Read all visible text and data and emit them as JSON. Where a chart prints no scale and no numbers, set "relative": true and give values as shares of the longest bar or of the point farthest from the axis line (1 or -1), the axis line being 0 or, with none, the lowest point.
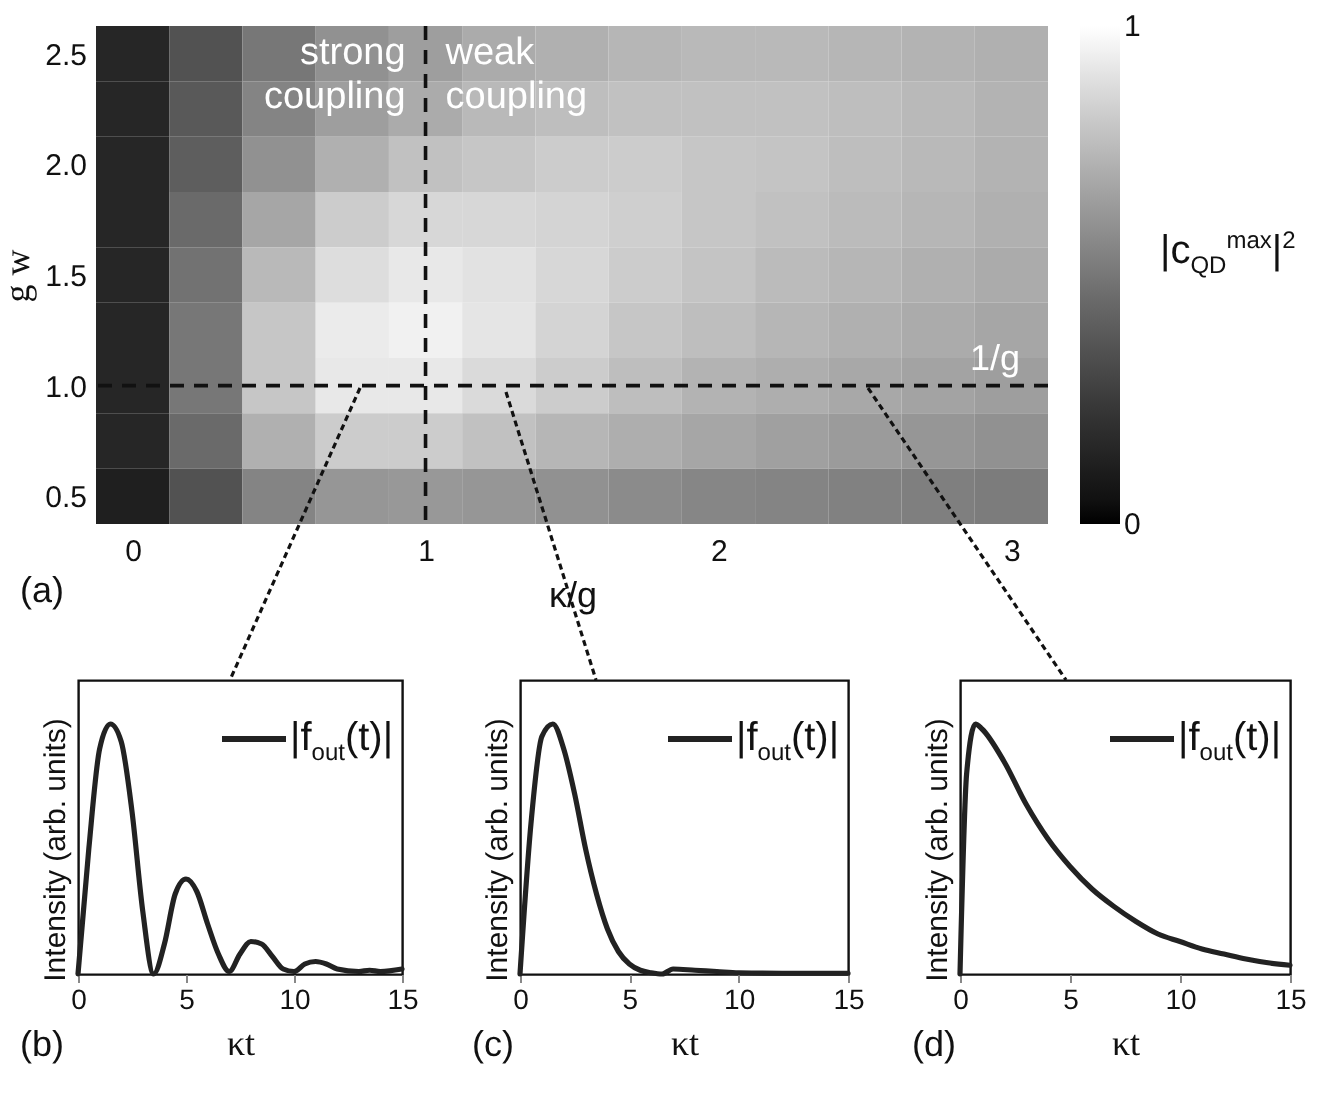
{
  "chart_data": [
    {
      "type": "heatmap",
      "xlabel": "κ/g",
      "ylabel": "g w",
      "clabel": "|c$_{QD}$$^{max}$|$^{2}$",
      "clim": [
        0,
        1
      ],
      "cticks": [
        0,
        1
      ],
      "annotations": [
        "(a)",
        "strong coupling",
        "weak coupling"
      ],
      "categories": [
        "0",
        null,
        null,
        null,
        "1",
        null,
        null,
        null,
        "2",
        null,
        null,
        null,
        "3"
      ],
      "y_categories": [
        "2.5",
        null,
        "2.0",
        null,
        "1.5",
        null,
        "1.0",
        null,
        "0.5"
      ],
      "cells": [
        [
          0.15,
          0.35,
          0.5,
          0.6,
          0.65,
          0.7,
          0.72,
          0.74,
          0.75,
          0.75,
          0.74,
          0.73,
          0.72
        ],
        [
          0.15,
          0.38,
          0.55,
          0.65,
          0.7,
          0.75,
          0.77,
          0.78,
          0.78,
          0.78,
          0.77,
          0.75,
          0.73
        ],
        [
          0.15,
          0.4,
          0.6,
          0.72,
          0.78,
          0.8,
          0.82,
          0.82,
          0.8,
          0.79,
          0.77,
          0.75,
          0.73
        ],
        [
          0.15,
          0.45,
          0.68,
          0.82,
          0.86,
          0.86,
          0.85,
          0.83,
          0.8,
          0.78,
          0.76,
          0.74,
          0.72
        ],
        [
          0.15,
          0.48,
          0.75,
          0.88,
          0.92,
          0.9,
          0.86,
          0.82,
          0.79,
          0.76,
          0.74,
          0.72,
          0.7
        ],
        [
          0.15,
          0.5,
          0.8,
          0.93,
          0.95,
          0.91,
          0.85,
          0.8,
          0.77,
          0.74,
          0.72,
          0.7,
          0.68
        ],
        [
          0.15,
          0.5,
          0.8,
          0.92,
          0.92,
          0.87,
          0.82,
          0.77,
          0.73,
          0.71,
          0.69,
          0.67,
          0.65
        ],
        [
          0.15,
          0.45,
          0.72,
          0.82,
          0.82,
          0.78,
          0.74,
          0.71,
          0.68,
          0.66,
          0.64,
          0.62,
          0.6
        ],
        [
          0.12,
          0.35,
          0.55,
          0.62,
          0.63,
          0.62,
          0.6,
          0.58,
          0.56,
          0.55,
          0.54,
          0.53,
          0.52
        ]
      ],
      "ref_lines": [
        {
          "axis": "x",
          "value": "1",
          "line_style": "dashed"
        },
        {
          "axis": "y",
          "value": "1.0",
          "label": "1/g",
          "line_style": "dashed"
        }
      ]
    },
    {
      "type": "line",
      "relative": true,
      "xlabel": "κt",
      "ylabel": "Intensity (arb. units)",
      "xlim": [
        0,
        15
      ],
      "xticks": [
        0,
        5,
        10,
        15
      ],
      "legend": "top right",
      "line_style": "solid",
      "annotations": [
        "(b)"
      ],
      "x": [
        0,
        0.5,
        1,
        1.5,
        2,
        2.5,
        3,
        3.5,
        4,
        4.5,
        5,
        5.5,
        6,
        6.5,
        7,
        7.5,
        8,
        8.5,
        9,
        9.5,
        10,
        10.5,
        11,
        11.5,
        12,
        13,
        13.5,
        14,
        15
      ],
      "series": [
        {
          "name": "|f$_{out}$(t)|",
          "color": "#222222",
          "values": [
            0,
            0.5,
            0.9,
            1.0,
            0.93,
            0.65,
            0.25,
            0,
            0.12,
            0.32,
            0.38,
            0.33,
            0.2,
            0.08,
            0.01,
            0.08,
            0.13,
            0.12,
            0.07,
            0.02,
            0.01,
            0.04,
            0.05,
            0.04,
            0.02,
            0.01,
            0.015,
            0.01,
            0.02
          ]
        }
      ]
    },
    {
      "type": "line",
      "relative": true,
      "xlabel": "κt",
      "ylabel": "Intensity (arb. units)",
      "xlim": [
        0,
        15
      ],
      "xticks": [
        0,
        5,
        10,
        15
      ],
      "legend": "top right",
      "line_style": "solid",
      "annotations": [
        "(c)"
      ],
      "x": [
        0,
        0.5,
        1,
        1.5,
        2,
        2.5,
        3,
        3.5,
        4,
        4.5,
        5,
        5.5,
        6,
        6.5,
        7,
        8,
        9,
        10,
        12,
        15
      ],
      "series": [
        {
          "name": "|f$_{out}$(t)|",
          "color": "#222222",
          "values": [
            0,
            0.6,
            0.95,
            1.0,
            0.9,
            0.72,
            0.5,
            0.32,
            0.18,
            0.09,
            0.04,
            0.015,
            0.005,
            0,
            0.02,
            0.015,
            0.01,
            0.005,
            0.003,
            0.003
          ]
        }
      ]
    },
    {
      "type": "line",
      "relative": true,
      "xlabel": "κt",
      "ylabel": "Intensity (arb. units)",
      "xlim": [
        0,
        15
      ],
      "xticks": [
        0,
        5,
        10,
        15
      ],
      "legend": "top right",
      "line_style": "solid",
      "annotations": [
        "(d)"
      ],
      "x": [
        0,
        0.3,
        0.7,
        1,
        2,
        3,
        4,
        5,
        6,
        7,
        8,
        9,
        10,
        11,
        12,
        13,
        14,
        15
      ],
      "series": [
        {
          "name": "|f$_{out}$(t)|",
          "color": "#222222",
          "values": [
            0,
            0.8,
            1.0,
            0.98,
            0.85,
            0.68,
            0.54,
            0.43,
            0.34,
            0.27,
            0.21,
            0.16,
            0.13,
            0.1,
            0.08,
            0.06,
            0.045,
            0.035
          ]
        }
      ]
    }
  ]
}
